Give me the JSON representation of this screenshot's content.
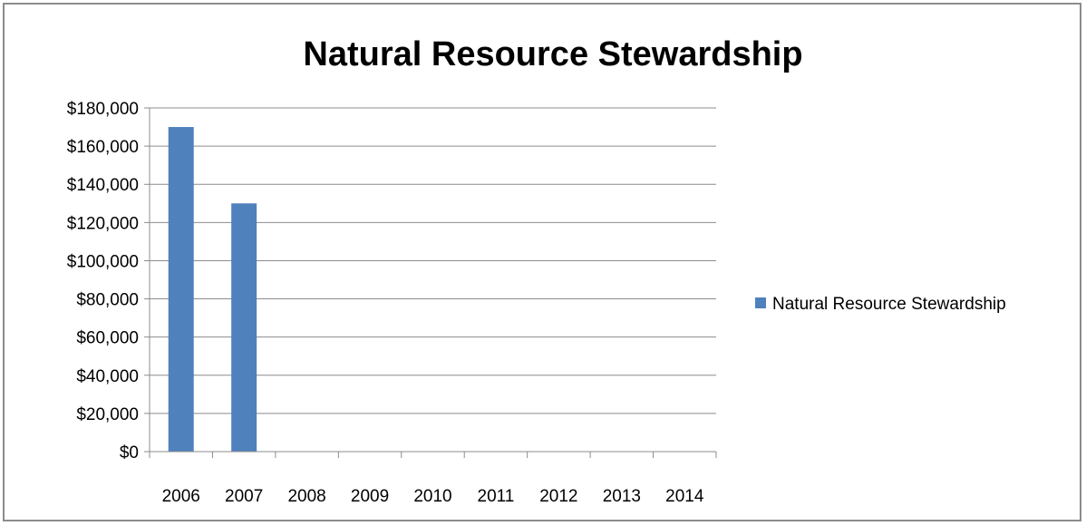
{
  "chart_data": {
    "type": "bar",
    "title": "Natural Resource Stewardship",
    "xlabel": "",
    "ylabel": "",
    "categories": [
      "2006",
      "2007",
      "2008",
      "2009",
      "2010",
      "2011",
      "2012",
      "2013",
      "2014"
    ],
    "series": [
      {
        "name": "Natural Resource Stewardship",
        "values": [
          170000,
          130000,
          0,
          0,
          0,
          0,
          0,
          0,
          0
        ],
        "color": "#4f81bd"
      }
    ],
    "ylim": [
      0,
      180000
    ],
    "y_tick_step": 20000,
    "y_tick_labels": [
      "$0",
      "$20,000",
      "$40,000",
      "$60,000",
      "$80,000",
      "$100,000",
      "$120,000",
      "$140,000",
      "$160,000",
      "$180,000"
    ],
    "grid": true,
    "legend_position": "right"
  }
}
